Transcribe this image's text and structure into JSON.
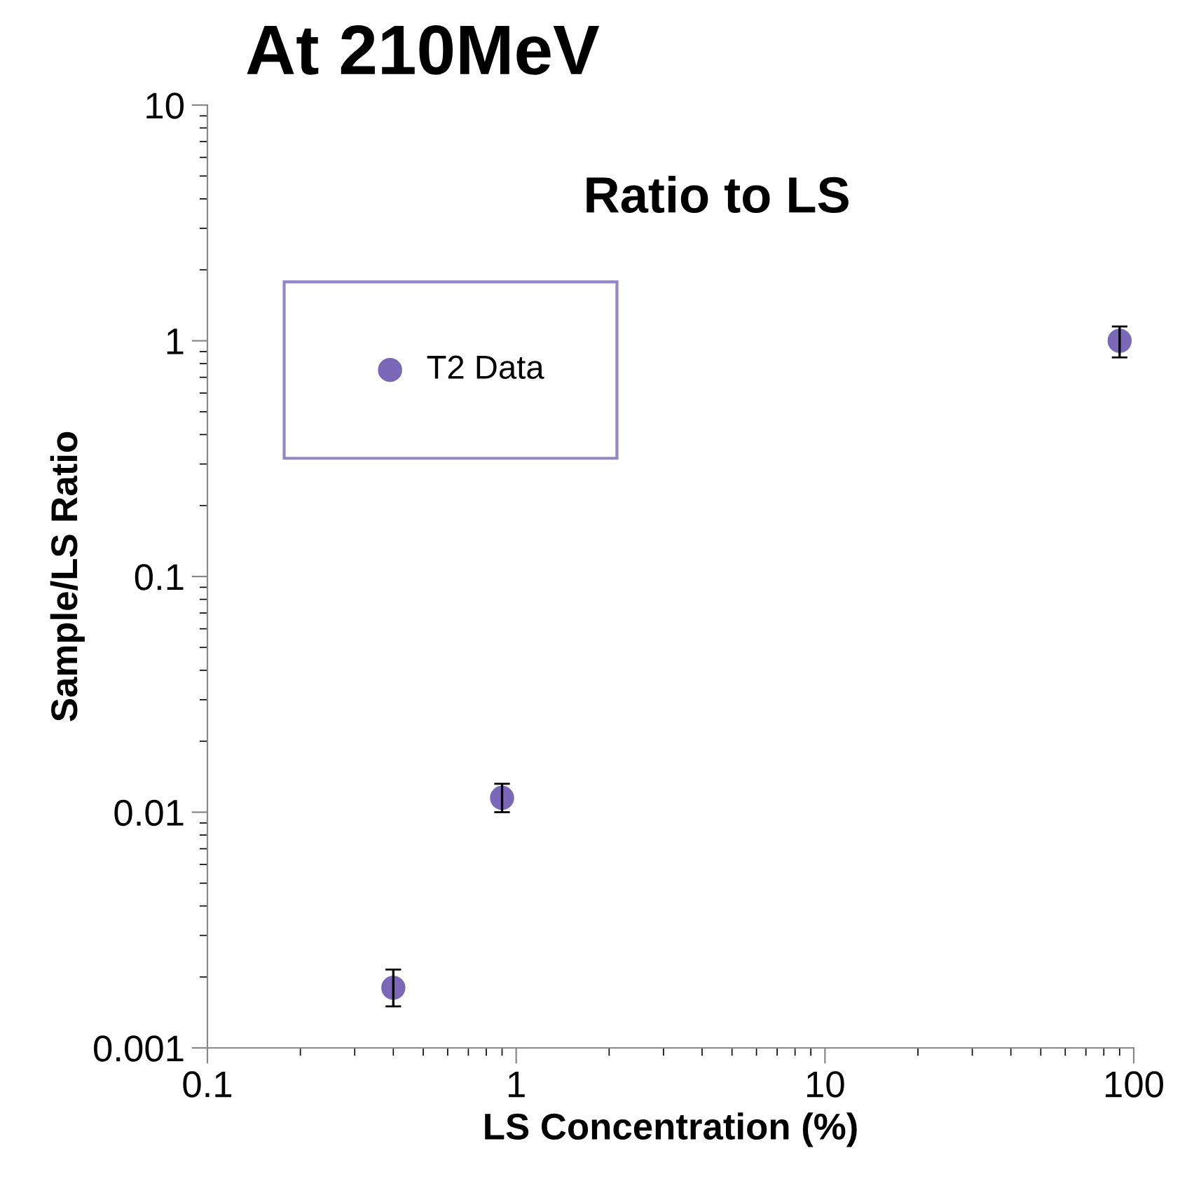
{
  "chart_data": {
    "type": "scatter",
    "title": "At 210MeV",
    "subtitle": "Ratio to LS",
    "xlabel": "LS Concentration (%)",
    "ylabel": "Sample/LS Ratio",
    "log": "xy",
    "xlim": [
      0.1,
      100
    ],
    "ylim": [
      0.001,
      10
    ],
    "xticks": [
      0.1,
      1,
      10,
      100
    ],
    "yticks": [
      0.001,
      0.01,
      0.1,
      1,
      10
    ],
    "legend": "top left",
    "marker": "circle",
    "grid": false,
    "series": [
      {
        "name": "T2 Data",
        "color": "#7b68b8",
        "x": [
          0.4,
          0.9,
          90
        ],
        "values": [
          0.0018,
          0.0115,
          1.0
        ],
        "errors": [
          [
            0.0015,
            0.00215
          ],
          [
            0.01,
            0.0132
          ],
          [
            0.85,
            1.15
          ]
        ]
      }
    ]
  }
}
